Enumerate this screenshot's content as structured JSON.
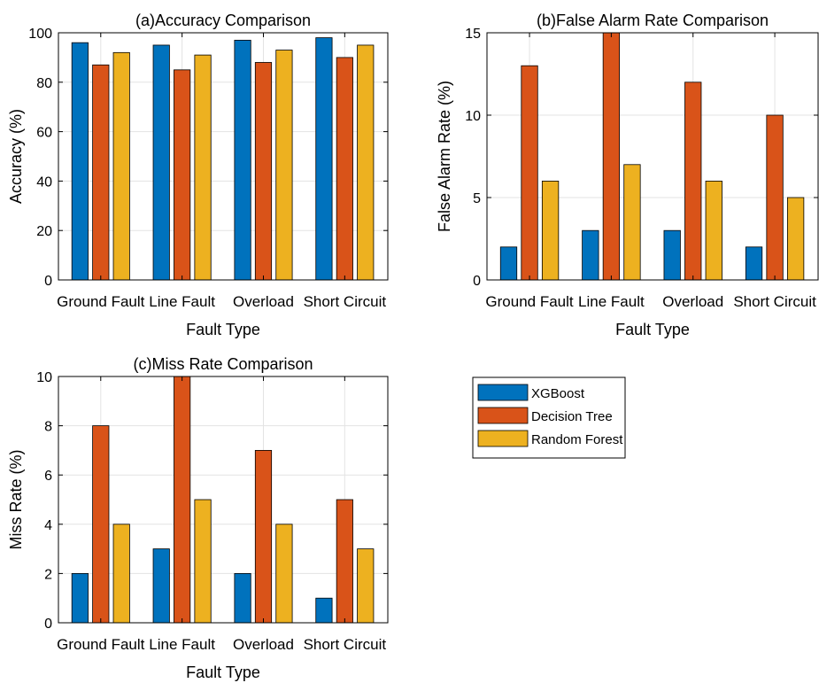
{
  "colors": {
    "xgboost": "#0072BD",
    "decision_tree": "#D95319",
    "random_forest": "#EDB120",
    "grid": "#e3e3e3"
  },
  "legend": {
    "entries": [
      "XGBoost",
      "Decision Tree",
      "Random Forest"
    ],
    "placement": "bottom-right"
  },
  "chart_data": [
    {
      "type": "bar",
      "title": "(a)Accuracy Comparison",
      "xlabel": "Fault Type",
      "ylabel": "Accuracy (%)",
      "categories": [
        "Ground Fault",
        "Line Fault",
        "Overload",
        "Short Circuit"
      ],
      "ylim": [
        0,
        100
      ],
      "yticks": [
        0,
        20,
        40,
        60,
        80,
        100
      ],
      "grid": true,
      "series": [
        {
          "name": "XGBoost",
          "values": [
            96,
            95,
            97,
            98
          ]
        },
        {
          "name": "Decision Tree",
          "values": [
            87,
            85,
            88,
            90
          ]
        },
        {
          "name": "Random Forest",
          "values": [
            92,
            91,
            93,
            95
          ]
        }
      ]
    },
    {
      "type": "bar",
      "title": "(b)False Alarm Rate Comparison",
      "xlabel": "Fault Type",
      "ylabel": "False Alarm Rate (%)",
      "categories": [
        "Ground Fault",
        "Line Fault",
        "Overload",
        "Short Circuit"
      ],
      "ylim": [
        0,
        15
      ],
      "yticks": [
        0,
        5,
        10,
        15
      ],
      "grid": true,
      "series": [
        {
          "name": "XGBoost",
          "values": [
            2,
            3,
            3,
            2
          ]
        },
        {
          "name": "Decision Tree",
          "values": [
            13,
            15,
            12,
            10
          ]
        },
        {
          "name": "Random Forest",
          "values": [
            6,
            7,
            6,
            5
          ]
        }
      ]
    },
    {
      "type": "bar",
      "title": "(c)Miss Rate Comparison",
      "xlabel": "Fault Type",
      "ylabel": "Miss Rate (%)",
      "categories": [
        "Ground Fault",
        "Line Fault",
        "Overload",
        "Short Circuit"
      ],
      "ylim": [
        0,
        10
      ],
      "yticks": [
        0,
        2,
        4,
        6,
        8,
        10
      ],
      "grid": true,
      "series": [
        {
          "name": "XGBoost",
          "values": [
            2,
            3,
            2,
            1
          ]
        },
        {
          "name": "Decision Tree",
          "values": [
            8,
            10,
            7,
            5
          ]
        },
        {
          "name": "Random Forest",
          "values": [
            4,
            5,
            4,
            3
          ]
        }
      ]
    }
  ]
}
